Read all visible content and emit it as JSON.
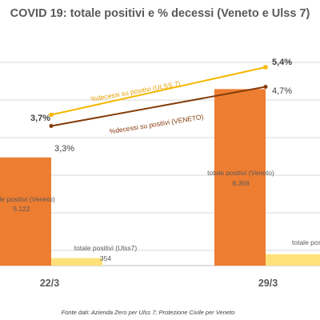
{
  "chart_data": {
    "type": "bar",
    "title": "COVID 19: totale positivi e % decessi (Veneto e Ulss 7)",
    "categories": [
      "22/3",
      "29/3"
    ],
    "series": [
      {
        "name": "totale positivi (Veneto)",
        "kind": "bar",
        "color": "#ED7D31",
        "values": [
          5122,
          8358
        ],
        "value_labels": [
          "5.122",
          "8.358"
        ]
      },
      {
        "name": "totale positivi (Ulss7)",
        "kind": "bar",
        "color": "#FFE17A",
        "values": [
          354,
          540
        ],
        "value_labels": [
          "354",
          ""
        ]
      },
      {
        "name": "%decessi su positivi (ULSS 7)",
        "kind": "line",
        "color": "#F5B800",
        "values": [
          3.7,
          5.4
        ],
        "value_labels": [
          "3,7%",
          "5,4%"
        ]
      },
      {
        "name": "%decessi su positivi (VENETO)",
        "kind": "line",
        "color": "#843C0C",
        "values": [
          3.3,
          4.7
        ],
        "value_labels": [
          "3,3%",
          "4,7%"
        ]
      }
    ],
    "grid": true,
    "source": "Fonte dati: Azienda Zero per Ulss 7; Protezione Civile per Veneto"
  }
}
